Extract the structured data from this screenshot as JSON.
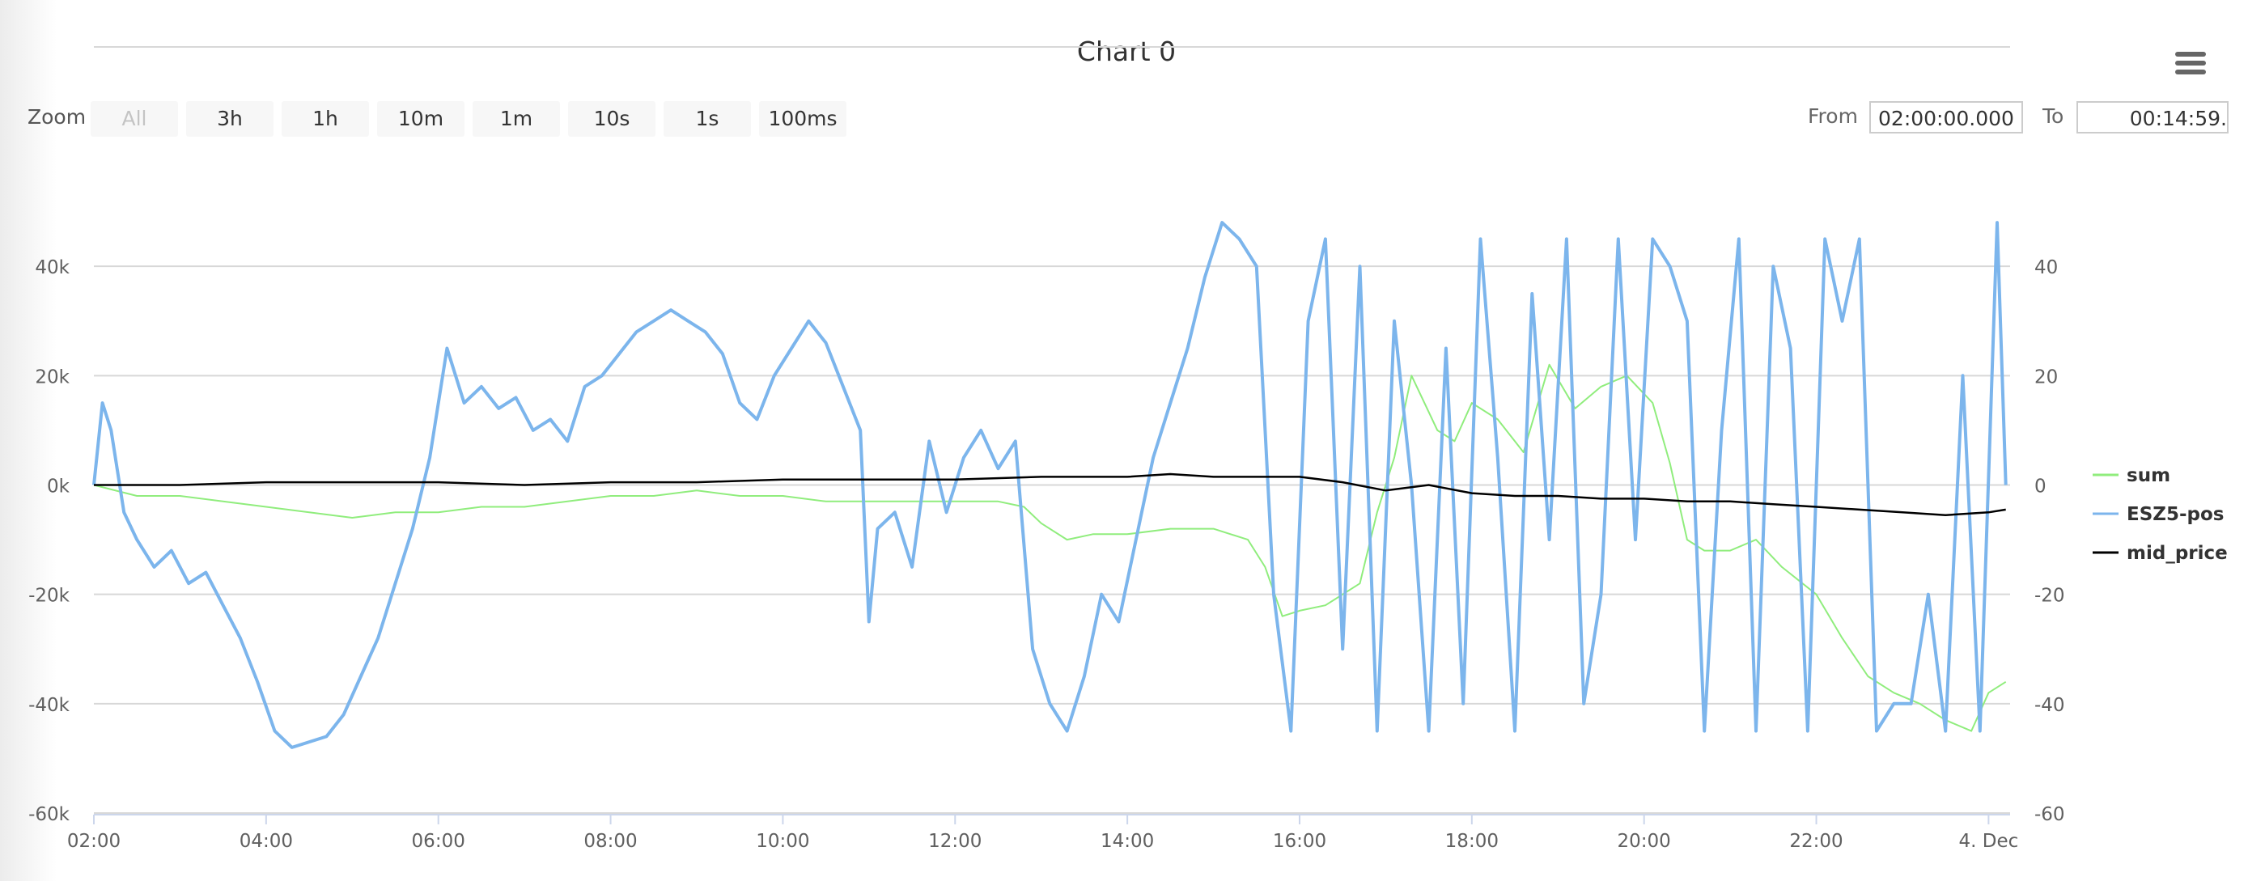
{
  "title": "Chart 0",
  "menu_icon": "hamburger-menu-icon",
  "range_selector": {
    "zoom_label": "Zoom",
    "buttons": [
      "All",
      "3h",
      "1h",
      "10m",
      "1m",
      "10s",
      "1s",
      "100ms"
    ],
    "disabled_button": "All",
    "from_label": "From",
    "from_value": "02:00:00.000",
    "to_label": "To",
    "to_value": "00:14:59."
  },
  "chart_data": {
    "type": "line",
    "title": "Chart 0",
    "x_axis": {
      "type": "datetime",
      "range": [
        "02:00",
        "00:15"
      ],
      "tick_labels": [
        "02:00",
        "04:00",
        "06:00",
        "08:00",
        "10:00",
        "12:00",
        "14:00",
        "16:00",
        "18:00",
        "20:00",
        "22:00",
        "4. Dec"
      ]
    },
    "y_axis_left": {
      "ylim": [
        -60000,
        60000
      ],
      "tick_labels": [
        "-60k",
        "-40k",
        "-20k",
        "0k",
        "20k",
        "40k"
      ]
    },
    "y_axis_right": {
      "ylim": [
        -60,
        60
      ],
      "tick_labels": [
        "-60",
        "-40",
        "-20",
        "0",
        "20",
        "40"
      ]
    },
    "grid": true,
    "legend": "right",
    "series": [
      {
        "name": "sum",
        "axis": "right",
        "color": "#90ed7d",
        "x_hours": [
          2.0,
          2.5,
          3.0,
          3.5,
          4.0,
          4.5,
          5.0,
          5.5,
          6.0,
          6.5,
          7.0,
          7.5,
          8.0,
          8.5,
          9.0,
          9.5,
          10.0,
          10.5,
          11.0,
          11.5,
          12.0,
          12.5,
          12.8,
          13.0,
          13.3,
          13.6,
          14.0,
          14.5,
          15.0,
          15.4,
          15.6,
          15.8,
          16.0,
          16.3,
          16.5,
          16.7,
          16.9,
          17.1,
          17.3,
          17.6,
          17.8,
          18.0,
          18.3,
          18.6,
          18.9,
          19.2,
          19.5,
          19.8,
          20.1,
          20.3,
          20.5,
          20.7,
          21.0,
          21.3,
          21.6,
          22.0,
          22.3,
          22.6,
          22.9,
          23.2,
          23.5,
          23.8,
          24.0,
          24.2
        ],
        "values": [
          0,
          -2,
          -2,
          -3,
          -4,
          -5,
          -6,
          -5,
          -5,
          -4,
          -4,
          -3,
          -2,
          -2,
          -1,
          -2,
          -2,
          -3,
          -3,
          -3,
          -3,
          -3,
          -4,
          -7,
          -10,
          -9,
          -9,
          -8,
          -8,
          -10,
          -15,
          -24,
          -23,
          -22,
          -20,
          -18,
          -5,
          5,
          20,
          10,
          8,
          15,
          12,
          6,
          22,
          14,
          18,
          20,
          15,
          4,
          -10,
          -12,
          -12,
          -10,
          -15,
          -20,
          -28,
          -35,
          -38,
          -40,
          -43,
          -45,
          -38,
          -36
        ]
      },
      {
        "name": "ESZ5-pos",
        "axis": "left",
        "color": "#7cb5ec",
        "x_hours": [
          2.0,
          2.1,
          2.2,
          2.35,
          2.5,
          2.7,
          2.9,
          3.1,
          3.3,
          3.5,
          3.7,
          3.9,
          4.1,
          4.3,
          4.5,
          4.7,
          4.9,
          5.1,
          5.3,
          5.5,
          5.7,
          5.9,
          6.1,
          6.3,
          6.5,
          6.7,
          6.9,
          7.1,
          7.3,
          7.5,
          7.7,
          7.9,
          8.1,
          8.3,
          8.5,
          8.7,
          8.9,
          9.1,
          9.3,
          9.5,
          9.7,
          9.9,
          10.1,
          10.3,
          10.5,
          10.7,
          10.9,
          11.0,
          11.1,
          11.3,
          11.5,
          11.7,
          11.9,
          12.1,
          12.3,
          12.5,
          12.7,
          12.9,
          13.1,
          13.3,
          13.5,
          13.7,
          13.9,
          14.1,
          14.3,
          14.5,
          14.7,
          14.9,
          15.1,
          15.3,
          15.5,
          15.7,
          15.9,
          16.1,
          16.3,
          16.5,
          16.7,
          16.9,
          17.1,
          17.3,
          17.5,
          17.7,
          17.9,
          18.1,
          18.3,
          18.5,
          18.7,
          18.9,
          19.1,
          19.3,
          19.5,
          19.7,
          19.9,
          20.1,
          20.3,
          20.5,
          20.7,
          20.9,
          21.1,
          21.3,
          21.5,
          21.7,
          21.9,
          22.1,
          22.3,
          22.5,
          22.7,
          22.9,
          23.1,
          23.3,
          23.5,
          23.7,
          23.9,
          24.1,
          24.2
        ],
        "values": [
          0,
          15000,
          10000,
          -5000,
          -10000,
          -15000,
          -12000,
          -18000,
          -16000,
          -22000,
          -28000,
          -36000,
          -45000,
          -48000,
          -47000,
          -46000,
          -42000,
          -35000,
          -28000,
          -18000,
          -8000,
          5000,
          25000,
          15000,
          18000,
          14000,
          16000,
          10000,
          12000,
          8000,
          18000,
          20000,
          24000,
          28000,
          30000,
          32000,
          30000,
          28000,
          24000,
          15000,
          12000,
          20000,
          25000,
          30000,
          26000,
          18000,
          10000,
          -25000,
          -8000,
          -5000,
          -15000,
          8000,
          -5000,
          5000,
          10000,
          3000,
          8000,
          -30000,
          -40000,
          -45000,
          -35000,
          -20000,
          -25000,
          -10000,
          5000,
          15000,
          25000,
          38000,
          48000,
          45000,
          40000,
          -20000,
          -45000,
          30000,
          45000,
          -30000,
          40000,
          -45000,
          30000,
          0,
          -45000,
          25000,
          -40000,
          45000,
          5000,
          -45000,
          35000,
          -10000,
          45000,
          -40000,
          -20000,
          45000,
          -10000,
          45000,
          40000,
          30000,
          -45000,
          10000,
          45000,
          -45000,
          40000,
          25000,
          -45000,
          45000,
          30000,
          45000,
          -45000,
          -40000,
          -40000,
          -20000,
          -45000,
          20000,
          -45000,
          48000,
          0
        ]
      },
      {
        "name": "mid_price",
        "axis": "right",
        "color": "#000000",
        "x_hours": [
          2.0,
          3.0,
          4.0,
          5.0,
          6.0,
          7.0,
          8.0,
          9.0,
          10.0,
          11.0,
          12.0,
          13.0,
          14.0,
          14.5,
          15.0,
          15.5,
          16.0,
          16.5,
          17.0,
          17.5,
          18.0,
          18.5,
          19.0,
          19.5,
          20.0,
          20.5,
          21.0,
          21.5,
          22.0,
          22.5,
          23.0,
          23.5,
          24.0,
          24.2
        ],
        "values": [
          0,
          0,
          0.5,
          0.5,
          0.5,
          0,
          0.5,
          0.5,
          1,
          1,
          1,
          1.5,
          1.5,
          2,
          1.5,
          1.5,
          1.5,
          0.5,
          -1,
          0,
          -1.5,
          -2,
          -2,
          -2.5,
          -2.5,
          -3,
          -3,
          -3.5,
          -4,
          -4.5,
          -5,
          -5.5,
          -5,
          -4.5
        ]
      }
    ]
  }
}
